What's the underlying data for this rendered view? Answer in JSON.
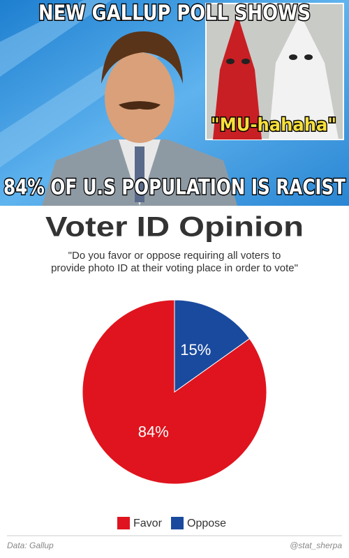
{
  "meme": {
    "top_text": "NEW GALLUP POLL SHOWS",
    "caption": "\"MU-hahaha\"",
    "bottom_text": "84% OF U.S POPULATION IS RACIST"
  },
  "chart_data": {
    "type": "pie",
    "title": "Voter ID Opinion",
    "subtitle": [
      "\"Do you favor or oppose requiring all voters to",
      "provide photo ID at their voting place in order to vote\""
    ],
    "categories": [
      "Favor",
      "Oppose"
    ],
    "values": [
      84,
      15
    ],
    "value_labels": [
      "84%",
      "15%"
    ],
    "colors": [
      "#e0141e",
      "#1a4a9e"
    ],
    "source": "Data: Gallup",
    "credit": "@stat_sherpa"
  }
}
